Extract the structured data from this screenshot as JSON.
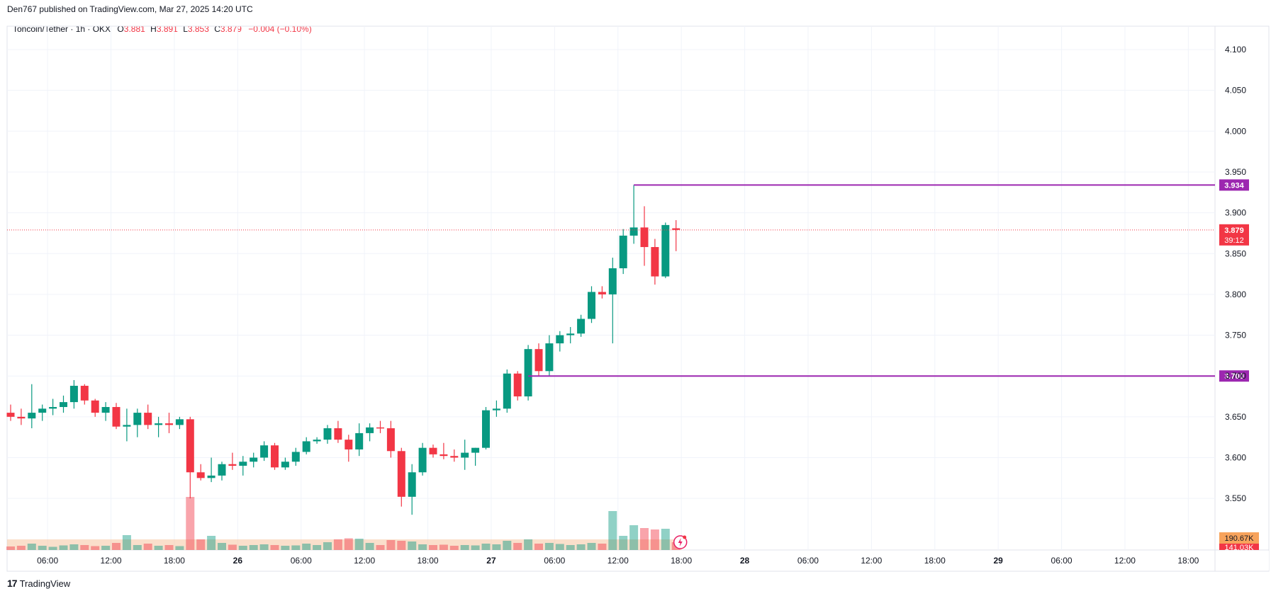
{
  "header": {
    "publisher": "Den767 published on TradingView.com, Mar 27, 2025 14:20 UTC"
  },
  "legend": {
    "symbol": "Toncoin/Tether · 1h · OKX",
    "o_label": "O",
    "o_value": "3.881",
    "h_label": "H",
    "h_value": "3.891",
    "l_label": "L",
    "l_value": "3.853",
    "c_label": "C",
    "c_value": "3.879",
    "change": "−0.004 (−0.10%)"
  },
  "footer": {
    "logo": "17",
    "brand": "TradingView"
  },
  "colors": {
    "up": "#089981",
    "down": "#f23645",
    "level": "#9c27b0",
    "grid": "#f0f3fa",
    "volume_ma": "#f7c9a8"
  },
  "chart_data": {
    "type": "candlestick",
    "interval": "1h",
    "y_ticks": [
      "4.100",
      "4.050",
      "4.000",
      "3.950",
      "3.900",
      "3.850",
      "3.800",
      "3.750",
      "3.700",
      "3.650",
      "3.600",
      "3.550"
    ],
    "ylim": [
      3.5,
      4.1
    ],
    "x_ticks": [
      {
        "label": "06:00",
        "bar": 4
      },
      {
        "label": "12:00",
        "bar": 10
      },
      {
        "label": "18:00",
        "bar": 16
      },
      {
        "label": "26",
        "bar": 22
      },
      {
        "label": "06:00",
        "bar": 28
      },
      {
        "label": "12:00",
        "bar": 34
      },
      {
        "label": "18:00",
        "bar": 40
      },
      {
        "label": "27",
        "bar": 46
      },
      {
        "label": "06:00",
        "bar": 52
      },
      {
        "label": "12:00",
        "bar": 58
      },
      {
        "label": "18:00",
        "bar": 64
      },
      {
        "label": "28",
        "bar": 70
      },
      {
        "label": "06:00",
        "bar": 76
      },
      {
        "label": "12:00",
        "bar": 82
      },
      {
        "label": "18:00",
        "bar": 88
      },
      {
        "label": "29",
        "bar": 94
      },
      {
        "label": "06:00",
        "bar": 100
      },
      {
        "label": "12:00",
        "bar": 106
      },
      {
        "label": "18:00",
        "bar": 112
      }
    ],
    "candles": [
      {
        "o": 3.655,
        "h": 3.665,
        "l": 3.645,
        "c": 3.65,
        "v": 10
      },
      {
        "o": 3.65,
        "h": 3.66,
        "l": 3.64,
        "c": 3.648,
        "v": 12
      },
      {
        "o": 3.648,
        "h": 3.69,
        "l": 3.636,
        "c": 3.655,
        "v": 18
      },
      {
        "o": 3.655,
        "h": 3.665,
        "l": 3.645,
        "c": 3.66,
        "v": 12
      },
      {
        "o": 3.66,
        "h": 3.672,
        "l": 3.652,
        "c": 3.662,
        "v": 9
      },
      {
        "o": 3.662,
        "h": 3.676,
        "l": 3.655,
        "c": 3.668,
        "v": 13
      },
      {
        "o": 3.668,
        "h": 3.695,
        "l": 3.66,
        "c": 3.688,
        "v": 16
      },
      {
        "o": 3.688,
        "h": 3.69,
        "l": 3.665,
        "c": 3.67,
        "v": 14
      },
      {
        "o": 3.67,
        "h": 3.672,
        "l": 3.65,
        "c": 3.655,
        "v": 11
      },
      {
        "o": 3.655,
        "h": 3.668,
        "l": 3.645,
        "c": 3.662,
        "v": 12
      },
      {
        "o": 3.662,
        "h": 3.667,
        "l": 3.635,
        "c": 3.638,
        "v": 20
      },
      {
        "o": 3.638,
        "h": 3.66,
        "l": 3.62,
        "c": 3.64,
        "v": 42
      },
      {
        "o": 3.64,
        "h": 3.66,
        "l": 3.625,
        "c": 3.655,
        "v": 14
      },
      {
        "o": 3.655,
        "h": 3.665,
        "l": 3.635,
        "c": 3.64,
        "v": 18
      },
      {
        "o": 3.64,
        "h": 3.65,
        "l": 3.625,
        "c": 3.642,
        "v": 12
      },
      {
        "o": 3.642,
        "h": 3.655,
        "l": 3.63,
        "c": 3.64,
        "v": 14
      },
      {
        "o": 3.64,
        "h": 3.65,
        "l": 3.635,
        "c": 3.647,
        "v": 11
      },
      {
        "o": 3.647,
        "h": 3.65,
        "l": 3.55,
        "c": 3.582,
        "v": 150
      },
      {
        "o": 3.582,
        "h": 3.592,
        "l": 3.572,
        "c": 3.575,
        "v": 30
      },
      {
        "o": 3.575,
        "h": 3.6,
        "l": 3.57,
        "c": 3.578,
        "v": 40
      },
      {
        "o": 3.578,
        "h": 3.595,
        "l": 3.572,
        "c": 3.592,
        "v": 20
      },
      {
        "o": 3.592,
        "h": 3.606,
        "l": 3.585,
        "c": 3.59,
        "v": 15
      },
      {
        "o": 3.59,
        "h": 3.602,
        "l": 3.578,
        "c": 3.595,
        "v": 12
      },
      {
        "o": 3.595,
        "h": 3.606,
        "l": 3.588,
        "c": 3.6,
        "v": 14
      },
      {
        "o": 3.6,
        "h": 3.62,
        "l": 3.596,
        "c": 3.615,
        "v": 16
      },
      {
        "o": 3.615,
        "h": 3.618,
        "l": 3.585,
        "c": 3.588,
        "v": 14
      },
      {
        "o": 3.588,
        "h": 3.6,
        "l": 3.585,
        "c": 3.595,
        "v": 12
      },
      {
        "o": 3.595,
        "h": 3.612,
        "l": 3.59,
        "c": 3.607,
        "v": 13
      },
      {
        "o": 3.607,
        "h": 3.625,
        "l": 3.604,
        "c": 3.62,
        "v": 18
      },
      {
        "o": 3.62,
        "h": 3.625,
        "l": 3.617,
        "c": 3.622,
        "v": 14
      },
      {
        "o": 3.622,
        "h": 3.64,
        "l": 3.617,
        "c": 3.636,
        "v": 22
      },
      {
        "o": 3.636,
        "h": 3.645,
        "l": 3.618,
        "c": 3.622,
        "v": 30
      },
      {
        "o": 3.622,
        "h": 3.628,
        "l": 3.595,
        "c": 3.61,
        "v": 33
      },
      {
        "o": 3.61,
        "h": 3.642,
        "l": 3.602,
        "c": 3.63,
        "v": 32
      },
      {
        "o": 3.63,
        "h": 3.642,
        "l": 3.62,
        "c": 3.637,
        "v": 20
      },
      {
        "o": 3.637,
        "h": 3.645,
        "l": 3.63,
        "c": 3.636,
        "v": 14
      },
      {
        "o": 3.636,
        "h": 3.645,
        "l": 3.6,
        "c": 3.608,
        "v": 28
      },
      {
        "o": 3.608,
        "h": 3.612,
        "l": 3.54,
        "c": 3.552,
        "v": 26
      },
      {
        "o": 3.552,
        "h": 3.592,
        "l": 3.53,
        "c": 3.582,
        "v": 24
      },
      {
        "o": 3.582,
        "h": 3.618,
        "l": 3.578,
        "c": 3.612,
        "v": 16
      },
      {
        "o": 3.612,
        "h": 3.616,
        "l": 3.6,
        "c": 3.604,
        "v": 14
      },
      {
        "o": 3.604,
        "h": 3.618,
        "l": 3.598,
        "c": 3.602,
        "v": 15
      },
      {
        "o": 3.602,
        "h": 3.61,
        "l": 3.595,
        "c": 3.6,
        "v": 12
      },
      {
        "o": 3.6,
        "h": 3.622,
        "l": 3.585,
        "c": 3.606,
        "v": 14
      },
      {
        "o": 3.606,
        "h": 3.612,
        "l": 3.59,
        "c": 3.612,
        "v": 13
      },
      {
        "o": 3.612,
        "h": 3.662,
        "l": 3.61,
        "c": 3.658,
        "v": 18
      },
      {
        "o": 3.658,
        "h": 3.67,
        "l": 3.65,
        "c": 3.66,
        "v": 16
      },
      {
        "o": 3.66,
        "h": 3.708,
        "l": 3.655,
        "c": 3.703,
        "v": 26
      },
      {
        "o": 3.703,
        "h": 3.706,
        "l": 3.67,
        "c": 3.675,
        "v": 20
      },
      {
        "o": 3.675,
        "h": 3.738,
        "l": 3.67,
        "c": 3.733,
        "v": 30
      },
      {
        "o": 3.733,
        "h": 3.74,
        "l": 3.7,
        "c": 3.706,
        "v": 18
      },
      {
        "o": 3.706,
        "h": 3.75,
        "l": 3.7,
        "c": 3.74,
        "v": 20
      },
      {
        "o": 3.74,
        "h": 3.755,
        "l": 3.73,
        "c": 3.75,
        "v": 17
      },
      {
        "o": 3.75,
        "h": 3.76,
        "l": 3.74,
        "c": 3.752,
        "v": 14
      },
      {
        "o": 3.752,
        "h": 3.775,
        "l": 3.748,
        "c": 3.77,
        "v": 16
      },
      {
        "o": 3.77,
        "h": 3.81,
        "l": 3.765,
        "c": 3.803,
        "v": 20
      },
      {
        "o": 3.803,
        "h": 3.81,
        "l": 3.795,
        "c": 3.8,
        "v": 18
      },
      {
        "o": 3.8,
        "h": 3.845,
        "l": 3.74,
        "c": 3.832,
        "v": 110
      },
      {
        "o": 3.832,
        "h": 3.88,
        "l": 3.825,
        "c": 3.872,
        "v": 40
      },
      {
        "o": 3.872,
        "h": 3.934,
        "l": 3.862,
        "c": 3.882,
        "v": 70
      },
      {
        "o": 3.882,
        "h": 3.908,
        "l": 3.835,
        "c": 3.858,
        "v": 62
      },
      {
        "o": 3.858,
        "h": 3.868,
        "l": 3.812,
        "c": 3.822,
        "v": 58
      },
      {
        "o": 3.822,
        "h": 3.888,
        "l": 3.82,
        "c": 3.885,
        "v": 60
      },
      {
        "o": 3.881,
        "h": 3.891,
        "l": 3.853,
        "c": 3.879,
        "v": 22
      }
    ],
    "levels": [
      {
        "price": 3.934,
        "label": "3.934",
        "from_bar": 59
      },
      {
        "price": 3.7,
        "label": "3.700",
        "from_bar": 49
      }
    ],
    "last_price": {
      "label": "3.879",
      "countdown": "39:12"
    },
    "volume_labels": {
      "ma": "190.67K",
      "last": "141.03K"
    }
  }
}
